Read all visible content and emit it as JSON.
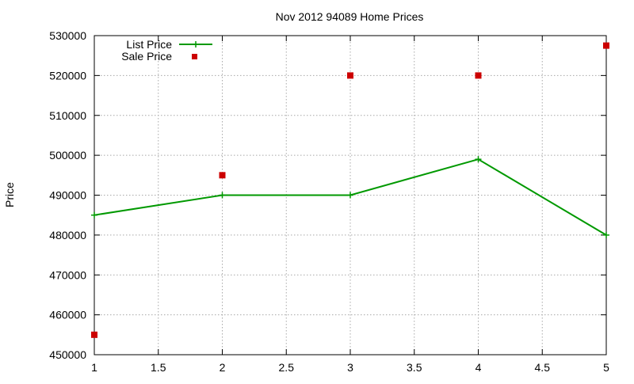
{
  "chart_data": {
    "type": "line",
    "title": "Nov 2012 94089 Home Prices",
    "xlabel": "",
    "ylabel": "Price",
    "xlim": [
      1,
      5
    ],
    "ylim": [
      450000,
      530000
    ],
    "x_ticks": [
      "1",
      "1.5",
      "2",
      "2.5",
      "3",
      "3.5",
      "4",
      "4.5",
      "5"
    ],
    "y_ticks": [
      "450000",
      "460000",
      "470000",
      "480000",
      "490000",
      "500000",
      "510000",
      "520000",
      "530000"
    ],
    "grid": true,
    "legend_position": "top-left",
    "series": [
      {
        "name": "List Price",
        "style": "line-with-plus-markers",
        "color": "#009900",
        "x": [
          1,
          2,
          3,
          4,
          5
        ],
        "y": [
          485000,
          490000,
          490000,
          499000,
          480000
        ]
      },
      {
        "name": "Sale Price",
        "style": "square-markers",
        "color": "#cc0000",
        "x": [
          1,
          2,
          3,
          4,
          5
        ],
        "y": [
          455000,
          495000,
          520000,
          520000,
          527500
        ]
      }
    ]
  }
}
